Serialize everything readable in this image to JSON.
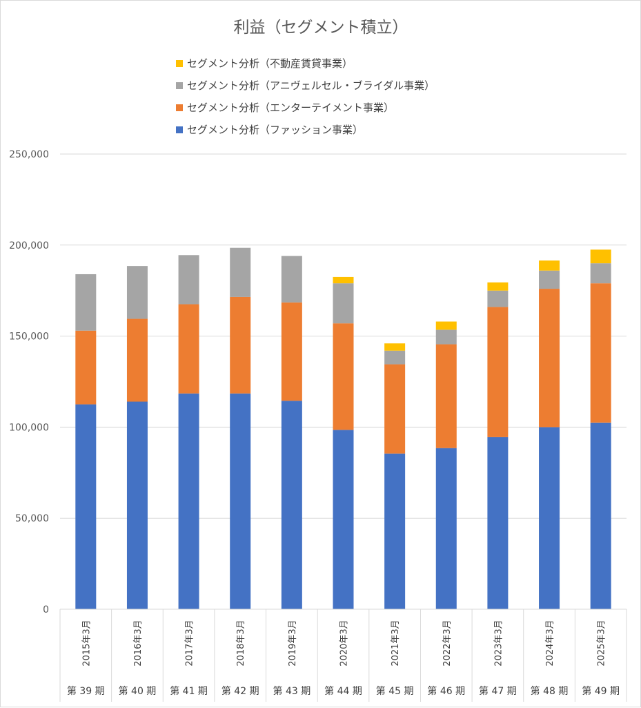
{
  "chart_data": {
    "type": "bar",
    "stacked": true,
    "title": "利益（セグメント積立）",
    "categories": [
      "2015年3月",
      "2016年3月",
      "2017年3月",
      "2018年3月",
      "2019年3月",
      "2020年3月",
      "2021年3月",
      "2022年3月",
      "2023年3月",
      "2024年3月",
      "2025年3月"
    ],
    "category_groups": [
      "第 39 期",
      "第 40 期",
      "第 41 期",
      "第 42 期",
      "第 43 期",
      "第 44 期",
      "第 45 期",
      "第 46 期",
      "第 47 期",
      "第 48 期",
      "第 49 期"
    ],
    "series": [
      {
        "name": "セグメント分析（ファッション事業）",
        "color": "#4472C4",
        "values": [
          112500,
          114000,
          118500,
          118500,
          114500,
          98500,
          85500,
          88500,
          94500,
          100000,
          102500
        ]
      },
      {
        "name": "セグメント分析（エンターテイメント事業）",
        "color": "#ED7D31",
        "values": [
          40500,
          45500,
          49000,
          53000,
          54000,
          58500,
          49000,
          57000,
          71500,
          76000,
          76500
        ]
      },
      {
        "name": "セグメント分析（アニヴェルセル・ブライダル事業）",
        "color": "#A5A5A5",
        "values": [
          31000,
          29000,
          27000,
          27000,
          25500,
          22000,
          7500,
          8000,
          9000,
          10000,
          11000
        ]
      },
      {
        "name": "セグメント分析（不動産賃貸事業）",
        "color": "#FFC000",
        "values": [
          0,
          0,
          0,
          0,
          0,
          3500,
          4000,
          4500,
          4500,
          5500,
          7500
        ]
      }
    ],
    "legend_order": [
      3,
      2,
      1,
      0
    ],
    "ylim": [
      0,
      250000
    ],
    "yticks": [
      0,
      50000,
      100000,
      150000,
      200000,
      250000
    ],
    "ytick_labels": [
      "0",
      "50,000",
      "100,000",
      "150,000",
      "200,000",
      "250,000"
    ],
    "xlabel": "",
    "ylabel": "",
    "grid": true,
    "legend_position": "top"
  }
}
